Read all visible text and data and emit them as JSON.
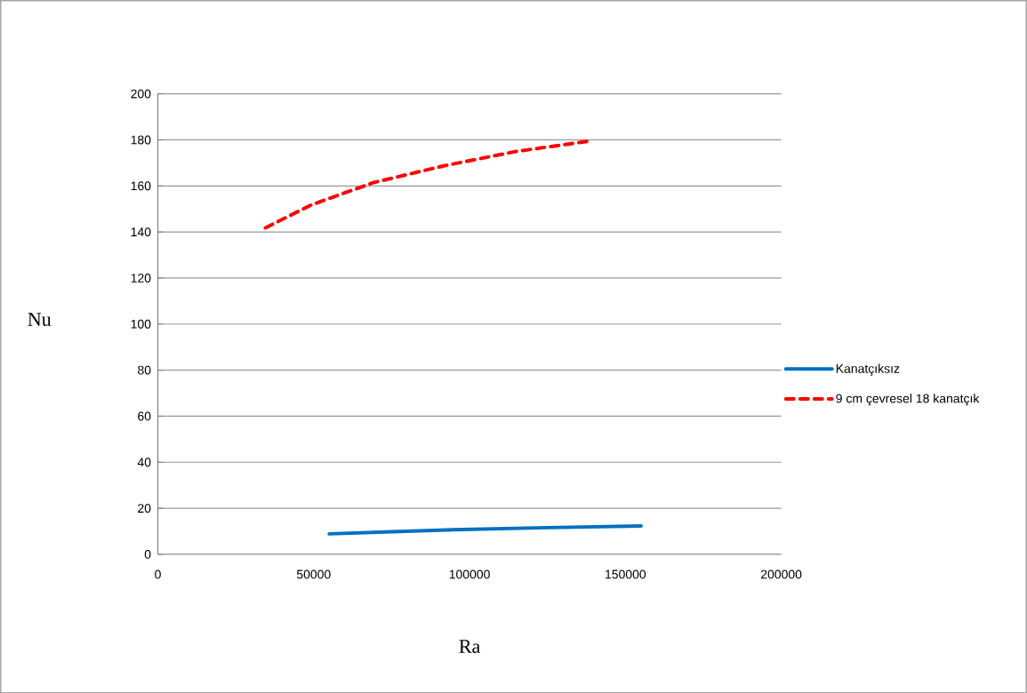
{
  "chart_data": {
    "type": "line",
    "xlabel": "Ra",
    "ylabel": "Nu",
    "xlim": [
      0,
      200000
    ],
    "ylim": [
      0,
      200
    ],
    "xticks": [
      0,
      50000,
      100000,
      150000,
      200000
    ],
    "yticks": [
      0,
      20,
      40,
      60,
      80,
      100,
      120,
      140,
      160,
      180,
      200
    ],
    "grid": "y",
    "legend": "right",
    "marker": "none",
    "series": [
      {
        "name": "Kanatçıksız",
        "color": "#0070c0",
        "line_style": "solid",
        "x": [
          55000,
          75000,
          97800,
          125000,
          155000
        ],
        "values": [
          8.9,
          9.8,
          10.8,
          11.6,
          12.3
        ]
      },
      {
        "name": "9 cm çevresel 18 kanatçık",
        "color": "#ff0000",
        "line_style": "dashed",
        "x": [
          34500,
          49300,
          69300,
          92000,
          115000,
          139000
        ],
        "values": [
          141.8,
          151.8,
          161.5,
          168.8,
          175,
          179.6
        ]
      }
    ]
  }
}
